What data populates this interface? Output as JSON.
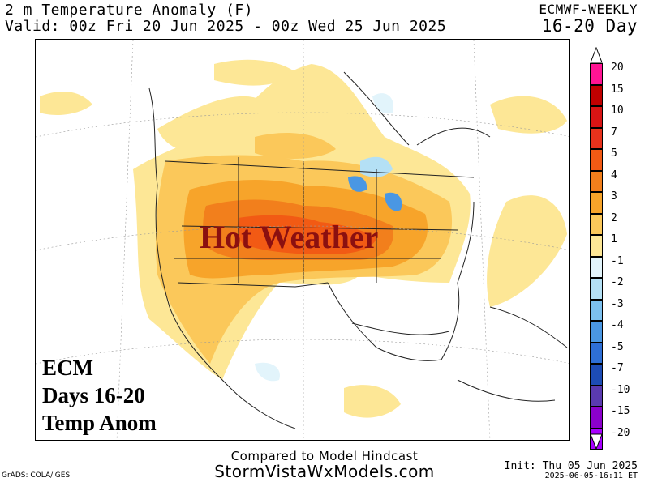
{
  "header": {
    "title": "2 m Temperature Anomaly (F)",
    "valid": "Valid: 00z Fri 20 Jun 2025 - 00z Wed 25 Jun 2025",
    "model": "ECMWF-WEEKLY",
    "range": "16-20 Day"
  },
  "map": {
    "annotation": "Hot Weather",
    "label_lines": [
      "ECM",
      "Days 16-20",
      "Temp Anom"
    ]
  },
  "legend": {
    "labels": [
      "20",
      "15",
      "10",
      "7",
      "5",
      "4",
      "3",
      "2",
      "1",
      "-1",
      "-2",
      "-3",
      "-4",
      "-5",
      "-7",
      "-10",
      "-15",
      "-20"
    ],
    "colors": [
      "#ff1493",
      "#c00000",
      "#d81414",
      "#e8321c",
      "#f25a14",
      "#f27f1c",
      "#f7a42a",
      "#fbc85a",
      "#fde796",
      "#ffffff",
      "#e2f4fb",
      "#b4e0f5",
      "#7cc0ef",
      "#4a97e3",
      "#2e6fd6",
      "#1d4cb5",
      "#5a3ab0",
      "#8b00cc",
      "#a800ff"
    ]
  },
  "footer": {
    "compare": "Compared to Model Hindcast",
    "site": "StormVistaWxModels.com",
    "grads": "GrADS: COLA/IGES",
    "init": "Init: Thu 05 Jun 2025",
    "stamp": "2025-06-05-16:11 ET"
  }
}
